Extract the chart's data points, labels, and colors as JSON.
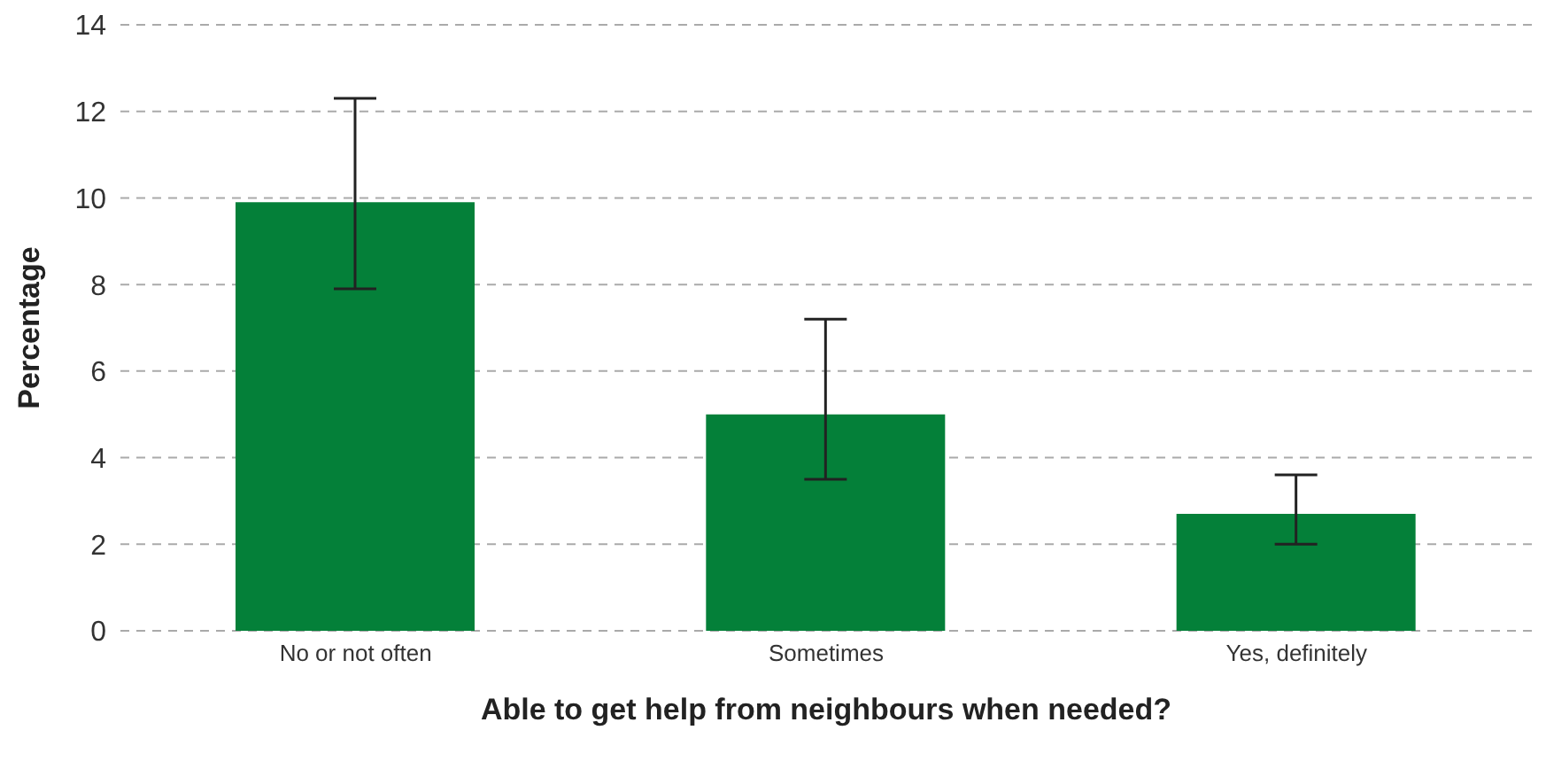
{
  "chart_data": {
    "type": "bar",
    "xlabel": "Able to get help from neighbours when needed?",
    "ylabel": "Percentage",
    "categories": [
      "No or not often",
      "Sometimes",
      "Yes, definitely"
    ],
    "values": [
      9.9,
      5.0,
      2.7
    ],
    "errors": [
      [
        7.9,
        12.3
      ],
      [
        3.5,
        7.2
      ],
      [
        2.0,
        3.6
      ]
    ],
    "color": "#048039",
    "ylim": [
      0,
      14
    ],
    "yticks": [
      0,
      2,
      4,
      6,
      8,
      10,
      12,
      14
    ],
    "grid": "y"
  }
}
